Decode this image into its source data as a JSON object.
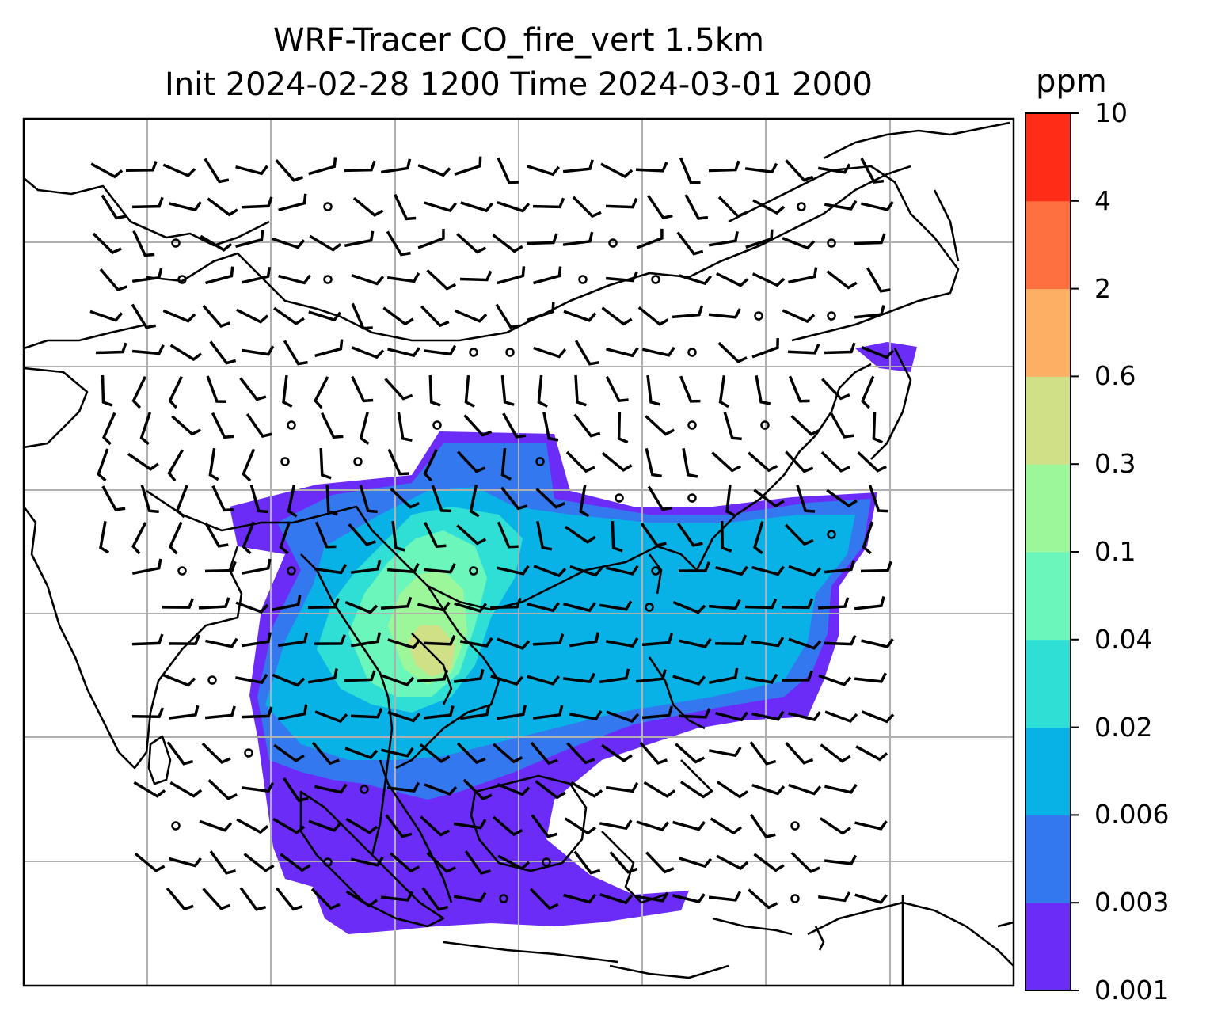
{
  "title": {
    "line1": "WRF-Tracer CO_fire_vert 1.5km",
    "line2": "Init 2024-02-28 1200 Time 2024-03-01 2000"
  },
  "colorbar": {
    "unit": "ppm",
    "levels": [
      "0.001",
      "0.003",
      "0.006",
      "0.02",
      "0.04",
      "0.1",
      "0.3",
      "0.6",
      "2",
      "4",
      "10"
    ],
    "colors": [
      "#6a2cf6",
      "#3478f0",
      "#08b2e6",
      "#2fdfd5",
      "#6bf7bc",
      "#9cf79b",
      "#d0e086",
      "#fdb063",
      "#ff7040",
      "#ff2d18"
    ]
  },
  "map": {
    "gridlines": true,
    "coastline_color": "#000000",
    "grid_color": "#b0b0b0",
    "wind_barbs": true,
    "calm_marker": "circle"
  }
}
